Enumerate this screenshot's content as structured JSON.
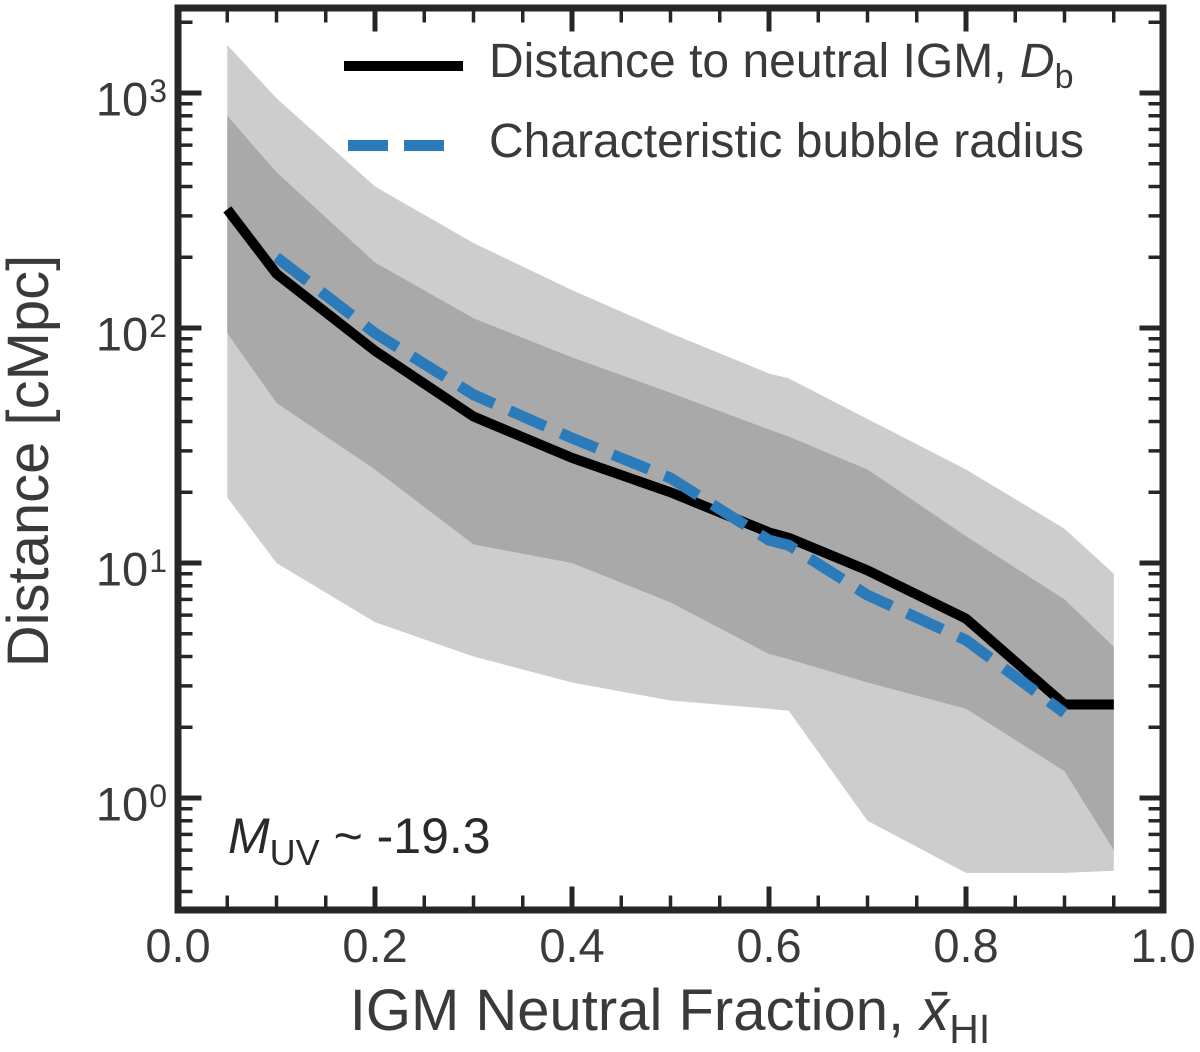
{
  "figure": {
    "background": "#ffffff",
    "text_color": "#3a3a3a",
    "spine_color": "#262626"
  },
  "chart_data": {
    "type": "line",
    "title": "",
    "xlabel_prefix": "IGM Neutral Fraction, ",
    "xlabel_math": "x̄",
    "xlabel_sub": "HI",
    "ylabel": "Distance [cMpc]",
    "xlim": [
      0.0,
      1.0
    ],
    "ylim": [
      0.33,
      2300
    ],
    "y_scale": "log",
    "grid": false,
    "x_tick_labels": [
      "0.0",
      "0.2",
      "0.4",
      "0.6",
      "0.8",
      "1.0"
    ],
    "x_tick_values": [
      0.0,
      0.2,
      0.4,
      0.6,
      0.8,
      1.0
    ],
    "x_minor_step": 0.05,
    "y_tick_exponents": [
      3,
      2,
      1,
      0
    ],
    "annotation": {
      "math": "M",
      "sub": "UV",
      "rest": " ~ -19.3"
    },
    "legend": [
      {
        "style": "solid",
        "color": "#000000",
        "label_prefix": "Distance to neutral IGM, ",
        "label_math": "D",
        "label_sub": "b"
      },
      {
        "style": "dashed",
        "color": "#2b7bba",
        "label_prefix": "Characteristic bubble radius",
        "label_math": "",
        "label_sub": ""
      }
    ],
    "legend_position": "upper center",
    "x": [
      0.05,
      0.1,
      0.2,
      0.3,
      0.4,
      0.5,
      0.6,
      0.62,
      0.7,
      0.8,
      0.9,
      0.95
    ],
    "series": [
      {
        "name": "distance_to_neutral_igm_Db_median",
        "color": "#000000",
        "style": "solid",
        "values": [
          320,
          170,
          80,
          42,
          28,
          20,
          13.5,
          12.8,
          9.3,
          5.8,
          2.5,
          2.5
        ]
      },
      {
        "name": "characteristic_bubble_radius",
        "color": "#2b7bba",
        "style": "dashed",
        "values": [
          null,
          200,
          95,
          52,
          34,
          23,
          12.5,
          11.9,
          7.3,
          4.7,
          2.3,
          null
        ]
      },
      {
        "name": "inner_band_upper",
        "color": "#a9a9a9",
        "style": "band",
        "values": [
          800,
          460,
          190,
          110,
          75,
          53,
          37,
          34.5,
          25,
          13,
          7,
          4.4
        ]
      },
      {
        "name": "inner_band_lower",
        "color": "#a9a9a9",
        "style": "band",
        "values": [
          95,
          48,
          25,
          12,
          10,
          6.8,
          4.1,
          3.9,
          3.1,
          2.4,
          1.3,
          0.6
        ]
      },
      {
        "name": "outer_band_upper",
        "color": "#cdcdcd",
        "style": "band",
        "values": [
          1600,
          950,
          400,
          230,
          145,
          95,
          64,
          61,
          41,
          25,
          14,
          9
        ]
      },
      {
        "name": "outer_band_lower",
        "color": "#cdcdcd",
        "style": "band",
        "values": [
          19,
          10,
          5.6,
          4.0,
          3.1,
          2.6,
          2.4,
          2.35,
          0.8,
          0.48,
          0.48,
          0.49
        ]
      }
    ],
    "colors": {
      "band_light": "#cdcdcd",
      "band_dark": "#a9a9a9",
      "line_black": "#000000",
      "line_blue": "#2b7bba",
      "spine": "#262626",
      "text": "#3a3a3a"
    }
  }
}
